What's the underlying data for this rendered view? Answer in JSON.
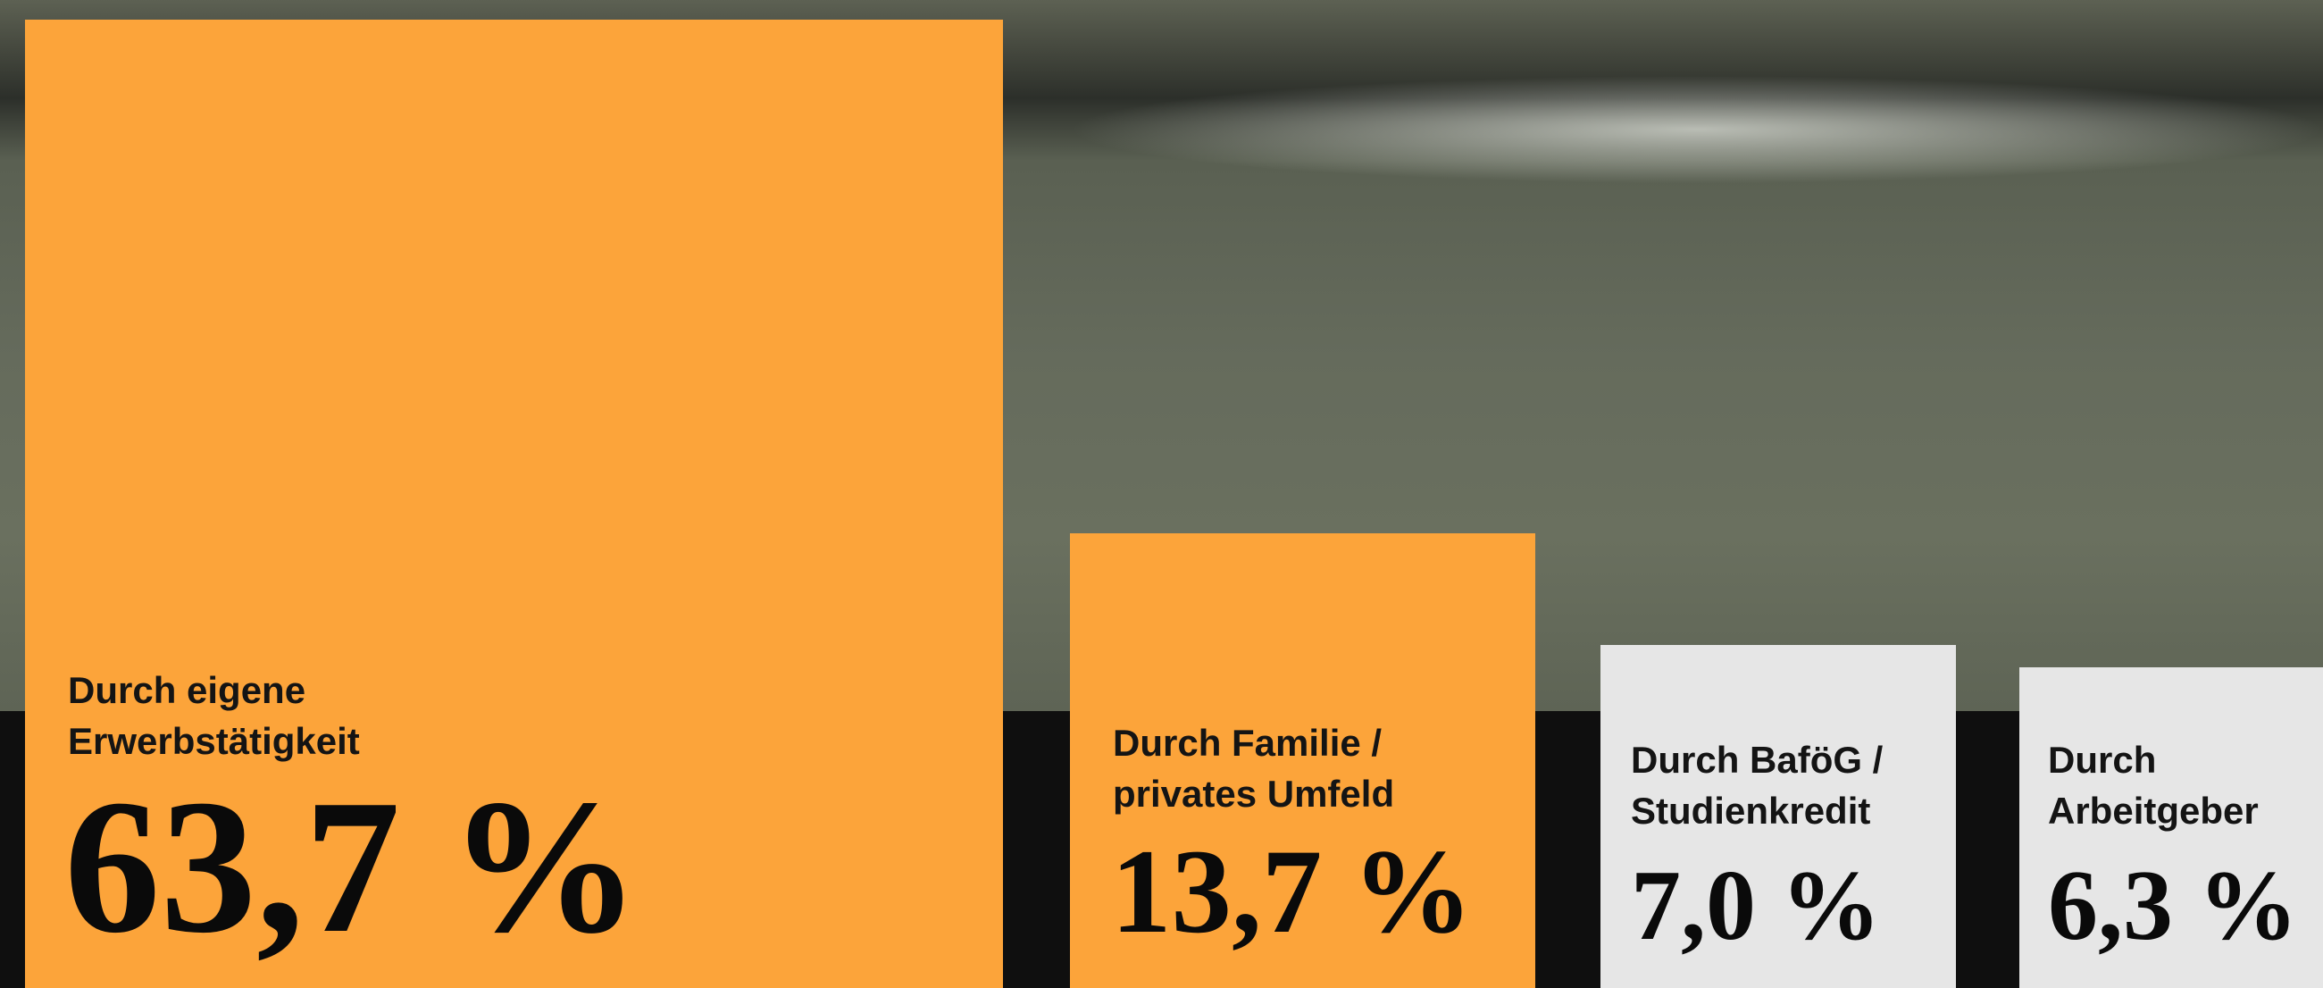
{
  "items": [
    {
      "label": [
        "Durch eigene",
        "Erwerbstätigkeit"
      ],
      "value": "63,7 %"
    },
    {
      "label": [
        "Durch Familie /",
        "privates Umfeld"
      ],
      "value": "13,7 %"
    },
    {
      "label": [
        "Durch BaföG /",
        "Studienkredit"
      ],
      "value": "7,0 %"
    },
    {
      "label": [
        "Durch",
        "Arbeitgeber"
      ],
      "value": "6,3 %"
    }
  ]
}
